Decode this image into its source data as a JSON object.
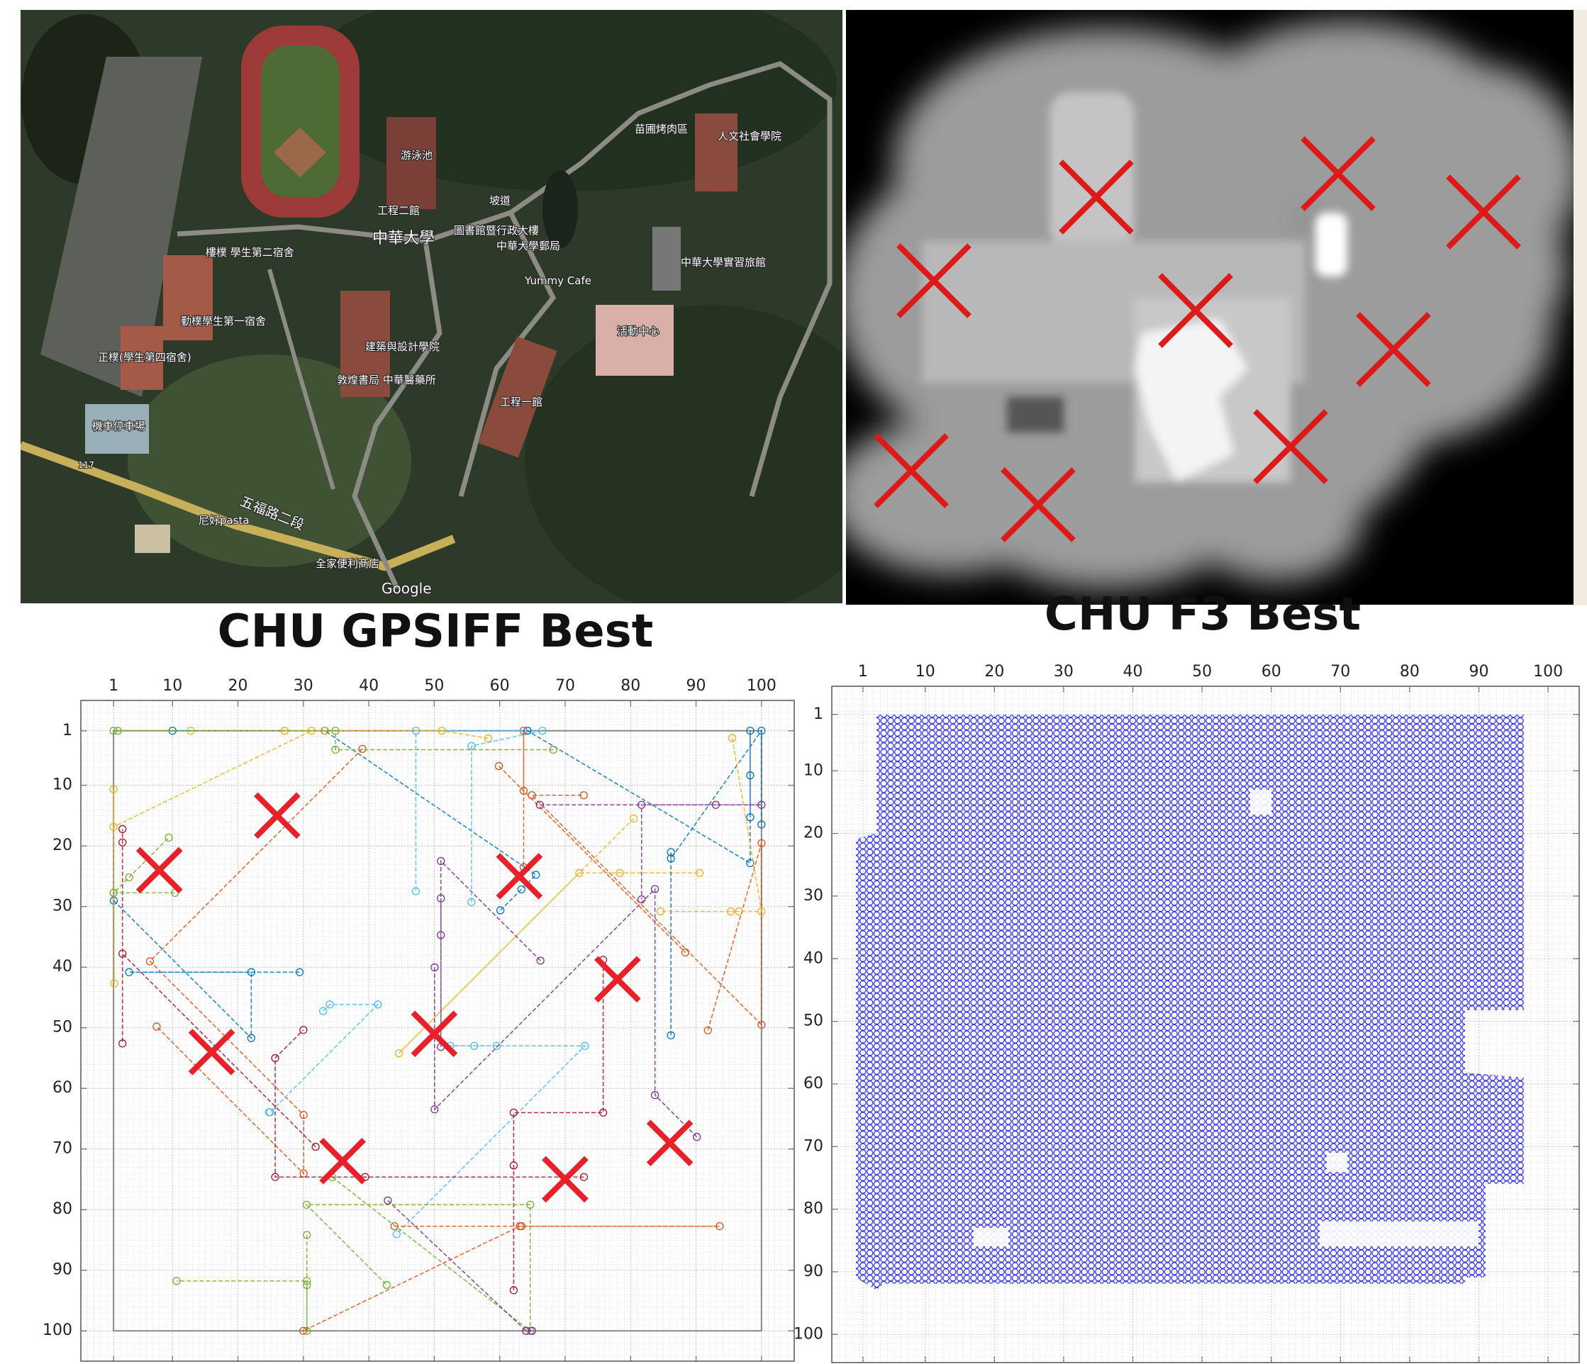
{
  "map": {
    "labels": [
      "游泳池",
      "工程二館",
      "中華大學",
      "坡道",
      "圖書館暨行政大樓",
      "中華大學郵局",
      "Yummy Cafe",
      "苗圃烤肉區",
      "人文社會學院",
      "中華大學實習旅館",
      "活動中心",
      "建築與設計學院",
      "敦煌書局 中華醫藥所",
      "工程一館",
      "勤樸學生第一宿舍",
      "正樸(學生第四宿舍)",
      "機車停車場",
      "樓樸 學生第二宿舍",
      "尼好pasta",
      "五福路二段",
      "全家便利商店",
      "Google",
      "117"
    ]
  },
  "chart_data": [
    {
      "type": "scatter",
      "title": "CHU GPSIFF Best",
      "xlim": [
        -4,
        105
      ],
      "ylim": [
        -4,
        105
      ],
      "y_reversed": true,
      "grid": true,
      "xticks": [
        1,
        10,
        20,
        30,
        40,
        50,
        60,
        70,
        80,
        90,
        100
      ],
      "yticks": [
        1,
        10,
        20,
        30,
        40,
        50,
        60,
        70,
        80,
        90,
        100
      ],
      "markers": {
        "color": "#e8202a",
        "x": [
          8,
          26,
          63,
          78,
          16,
          50,
          36,
          70,
          86
        ],
        "y": [
          24,
          15,
          25,
          42,
          54,
          51,
          72,
          75,
          69
        ]
      }
    },
    {
      "type": "coverage",
      "title": "CHU F3 Best",
      "xlim": [
        -3.5,
        104.5
      ],
      "ylim": [
        -3.5,
        104.5
      ],
      "y_reversed": true,
      "grid": true,
      "color": "#3434e8",
      "xticks": [
        1,
        10,
        20,
        30,
        40,
        50,
        60,
        70,
        80,
        90,
        100
      ],
      "yticks": [
        1,
        10,
        20,
        30,
        40,
        50,
        60,
        70,
        80,
        90,
        100
      ]
    }
  ]
}
